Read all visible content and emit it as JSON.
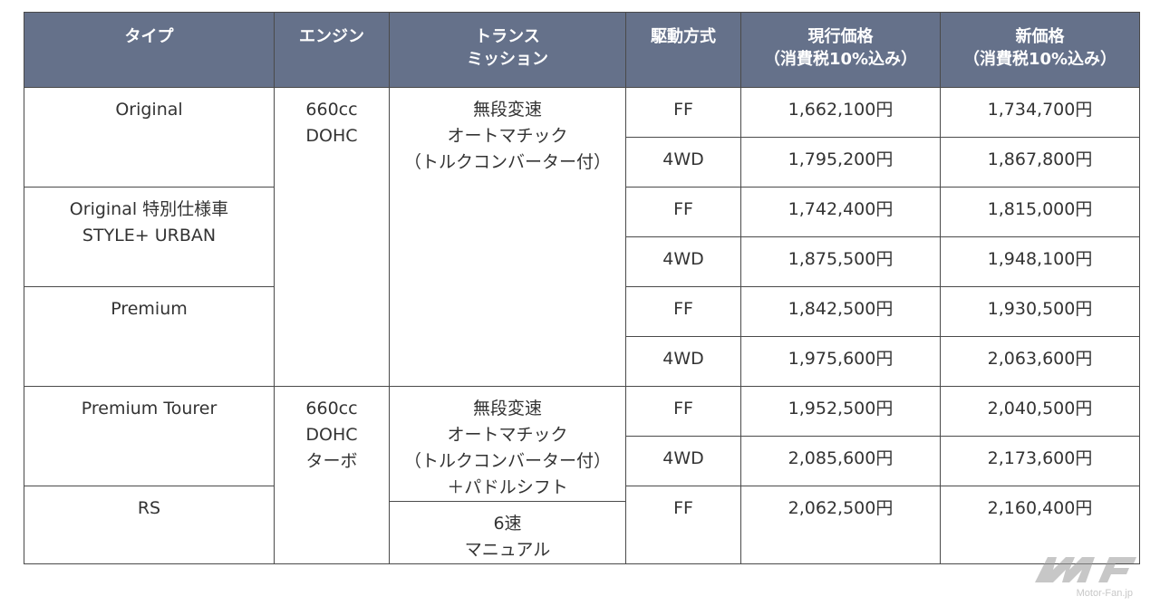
{
  "headers": {
    "type": [
      "タイプ"
    ],
    "engine": [
      "エンジン"
    ],
    "transmission": [
      "トランス",
      "ミッション"
    ],
    "drive": [
      "駆動方式"
    ],
    "current_price": [
      "現行価格",
      "（消費税10%込み）"
    ],
    "new_price": [
      "新価格",
      "（消費税10%込み）"
    ]
  },
  "types": {
    "original": [
      "Original"
    ],
    "original_special": [
      "Original 特別仕様車",
      "STYLE+ URBAN"
    ],
    "premium": [
      "Premium"
    ],
    "premium_tourer": [
      "Premium Tourer"
    ],
    "rs": [
      "RS"
    ]
  },
  "engines": {
    "na": [
      "660cc",
      "DOHC"
    ],
    "turbo": [
      "660cc",
      "DOHC",
      "ターボ"
    ]
  },
  "transmissions": {
    "cvt": [
      "無段変速",
      "オートマチック",
      "（トルクコンバーター付）"
    ],
    "cvt_paddle": [
      "無段変速",
      "オートマチック",
      "（トルクコンバーター付）",
      "＋パドルシフト"
    ],
    "mt": [
      "6速",
      "マニュアル"
    ]
  },
  "rows": [
    {
      "drive": "FF",
      "current": "1,662,100円",
      "new": "1,734,700円"
    },
    {
      "drive": "4WD",
      "current": "1,795,200円",
      "new": "1,867,800円"
    },
    {
      "drive": "FF",
      "current": "1,742,400円",
      "new": "1,815,000円"
    },
    {
      "drive": "4WD",
      "current": "1,875,500円",
      "new": "1,948,100円"
    },
    {
      "drive": "FF",
      "current": "1,842,500円",
      "new": "1,930,500円"
    },
    {
      "drive": "4WD",
      "current": "1,975,600円",
      "new": "2,063,600円"
    },
    {
      "drive": "FF",
      "current": "1,952,500円",
      "new": "2,040,500円"
    },
    {
      "drive": "4WD",
      "current": "2,085,600円",
      "new": "2,173,600円"
    },
    {
      "drive": "FF",
      "current": "2,062,500円",
      "new": "2,160,400円"
    }
  ],
  "watermark": {
    "text": "Motor-Fan.jp"
  },
  "colors": {
    "header_bg": "#65718a",
    "header_text": "#ffffff",
    "border": "#4a4a4a",
    "text": "#333333"
  }
}
